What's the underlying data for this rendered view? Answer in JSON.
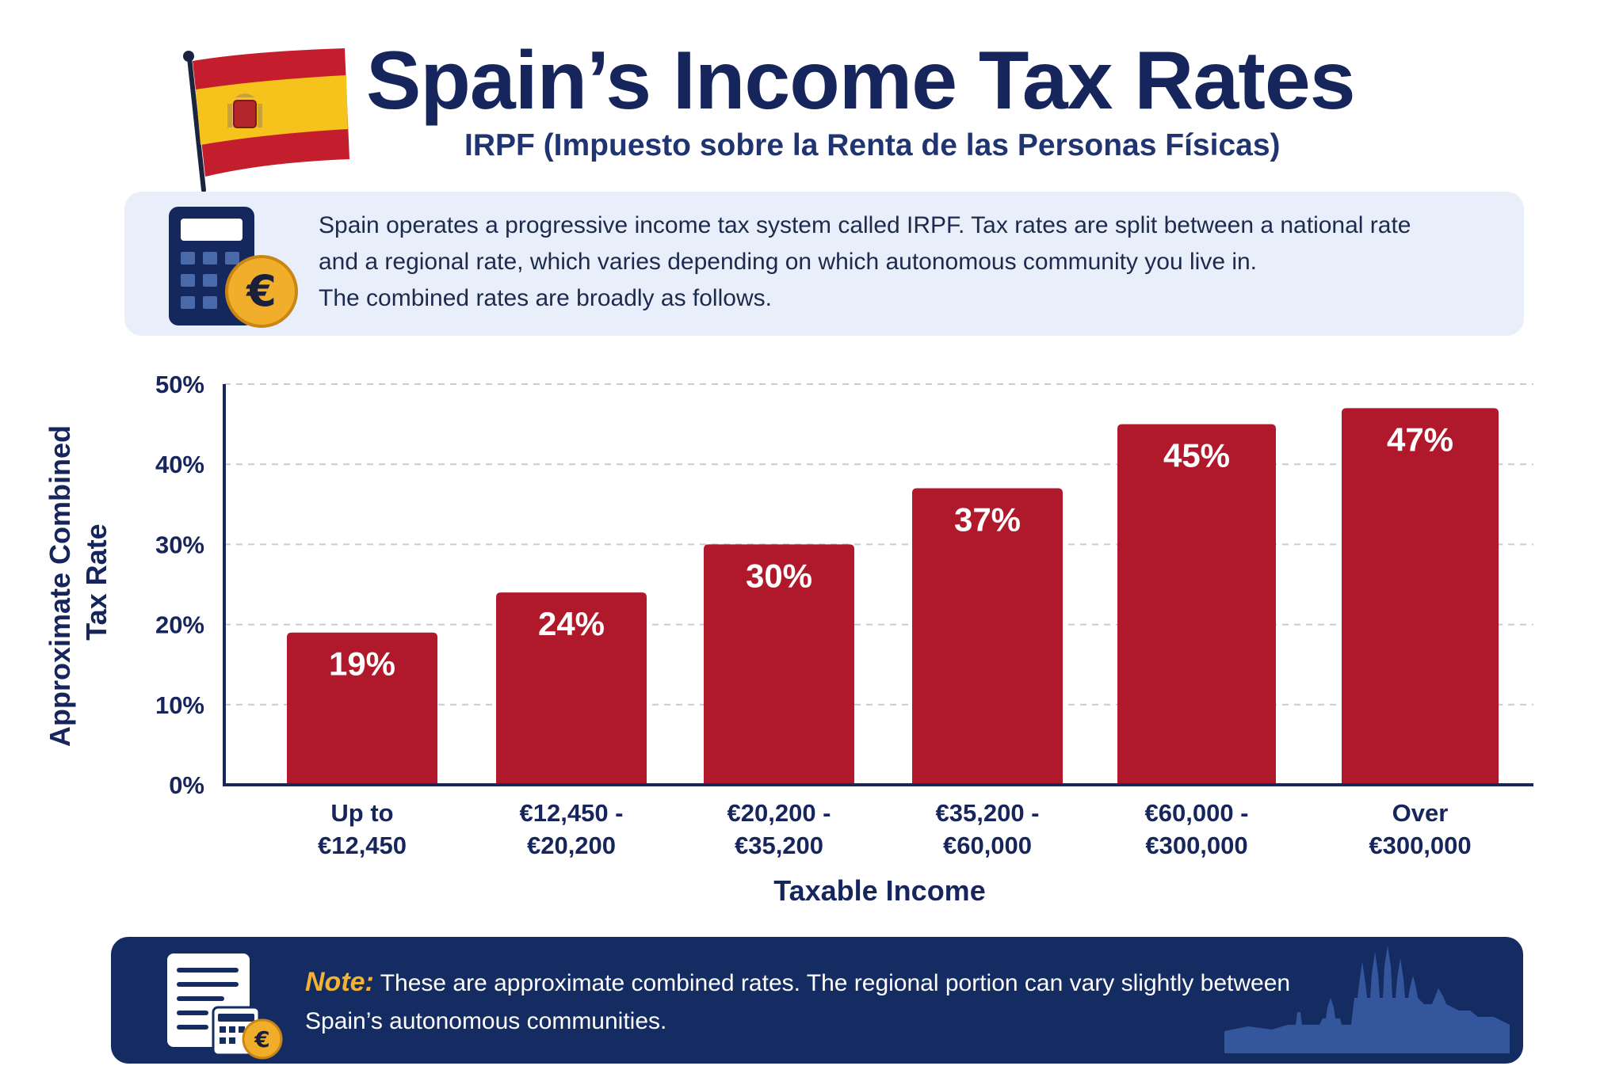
{
  "header": {
    "title": "Spain’s Income Tax Rates",
    "subtitle": "IRPF (Impuesto sobre la Renta de las Personas Físicas)"
  },
  "intro": {
    "lines": [
      "Spain operates a progressive income tax system called IRPF. Tax rates are split between a national rate",
      "and a regional rate, which varies depending on which autonomous community you live in.",
      "The combined rates are broadly as follows."
    ]
  },
  "icons": {
    "flag": "spain-flag-icon",
    "calculator": "calculator-euro-icon",
    "note": "document-calculator-icon",
    "skyline": "barcelona-skyline-icon"
  },
  "colors": {
    "bar": "#b0192c",
    "navy": "#16265c",
    "note_bg": "#142c62",
    "accent": "#f2b233"
  },
  "chart_data": {
    "type": "bar",
    "title": "Spain’s Income Tax Rates",
    "xlabel": "Taxable Income",
    "ylabel": "Approximate Combined Tax Rate",
    "ylabel_lines": [
      "Approximate Combined",
      "Tax Rate"
    ],
    "ylim": [
      0,
      50
    ],
    "yticks": [
      0,
      10,
      20,
      30,
      40,
      50
    ],
    "ytick_labels": [
      "0%",
      "10%",
      "20%",
      "30%",
      "40%",
      "50%"
    ],
    "grid": true,
    "categories": [
      [
        "Up to",
        "€12,450"
      ],
      [
        "€12,450 -",
        "€20,200"
      ],
      [
        "€20,200 -",
        "€35,200"
      ],
      [
        "€35,200 -",
        "€60,000"
      ],
      [
        "€60,000 -",
        "€300,000"
      ],
      [
        "Over",
        "€300,000"
      ]
    ],
    "values": [
      19,
      24,
      30,
      37,
      45,
      47
    ],
    "value_labels": [
      "19%",
      "24%",
      "30%",
      "37%",
      "45%",
      "47%"
    ]
  },
  "note": {
    "label": "Note:",
    "text_line1": "These are approximate combined rates. The regional portion can vary slightly between",
    "text_line2": "Spain’s autonomous communities."
  }
}
